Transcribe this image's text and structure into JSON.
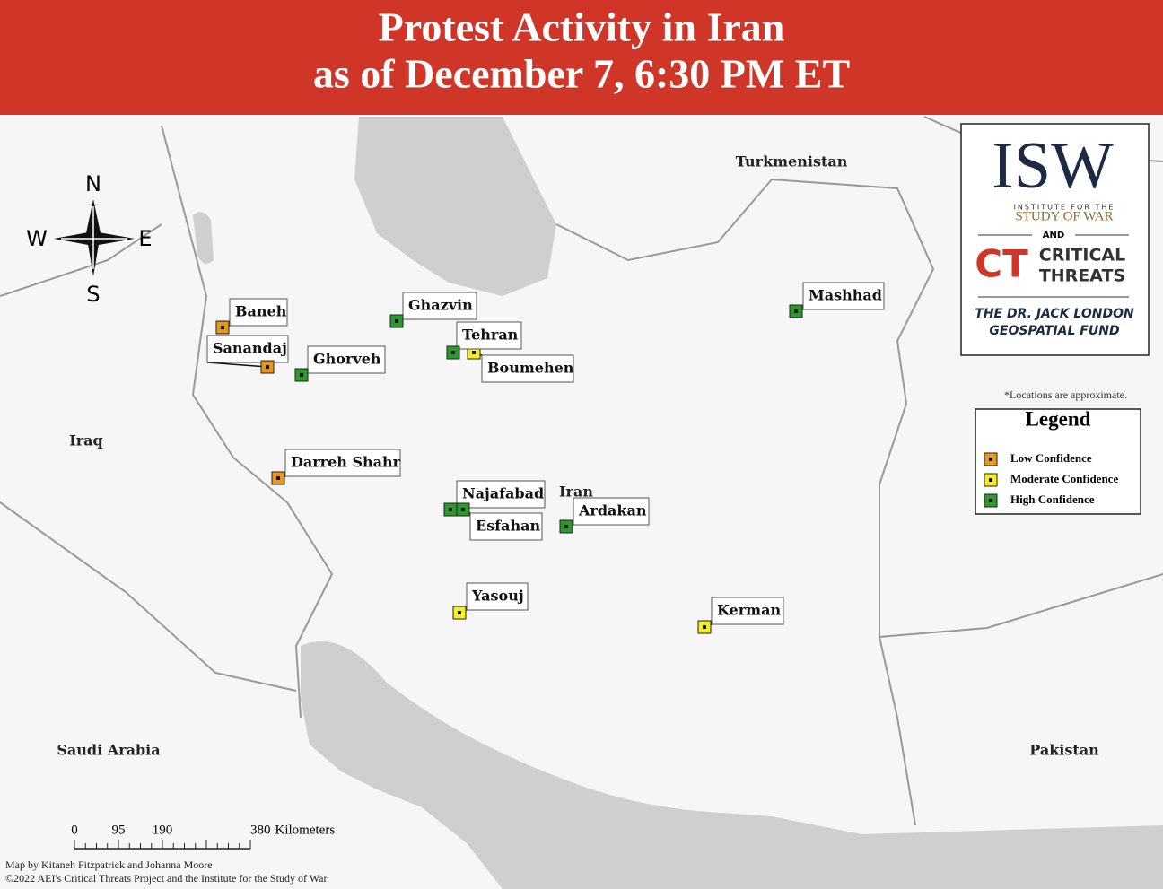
{
  "header": {
    "title_lines": [
      "Protest Activity in Iran",
      "as of December 7, 6:30 PM ET"
    ]
  },
  "countries": [
    "Turkmenistan",
    "Iraq",
    "Iran",
    "Saudi Arabia",
    "Pakistan"
  ],
  "compass": [
    "N",
    "E",
    "S",
    "W"
  ],
  "logo": {
    "isw": "ISW",
    "isw_line1": "INSTITUTE FOR THE",
    "isw_line2": "STUDY OF WAR",
    "and": "AND",
    "ct": "CT",
    "ct_line1": "CRITICAL",
    "ct_line2": "THREATS",
    "fund_line1": "THE DR. JACK LONDON",
    "fund_line2": "GEOSPATIAL FUND"
  },
  "note": "*Locations are approximate.",
  "legend": {
    "title": "Legend",
    "items": [
      {
        "label": "Low Confidence",
        "color": "#e8961e",
        "locations": [
          "Baneh",
          "Sanandaj",
          "Darreh Shahr"
        ]
      },
      {
        "label": "Moderate Confidence",
        "color": "#f5ee1a",
        "locations": [
          "Boumehen",
          "Yasouj",
          "Kerman"
        ]
      },
      {
        "label": "High Confidence",
        "color": "#2a9a2a",
        "locations": [
          "Ghazvin",
          "Tehran",
          "Ghorveh",
          "Mashhad",
          "Najafabad",
          "Esfahan",
          "Ardakan"
        ]
      }
    ]
  },
  "scale": {
    "ticks": [
      0,
      95,
      190,
      380
    ],
    "unit": "Kilometers"
  },
  "credits": [
    "Map by Kitaneh Fitzpatrick and Johanna Moore",
    "©2022 AEI's Critical Threats Project and the Institute for the Study of War"
  ]
}
